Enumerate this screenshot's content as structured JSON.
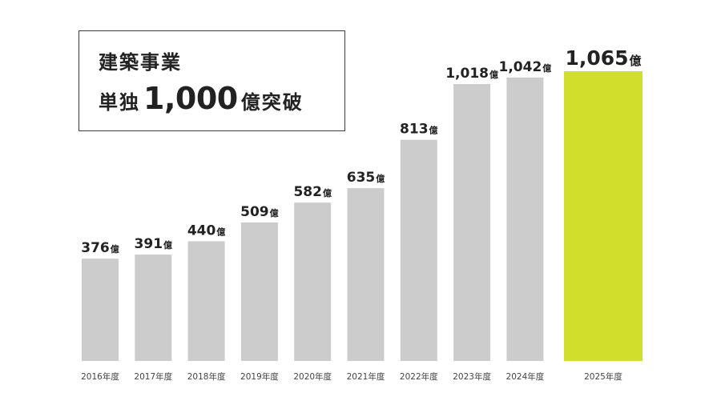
{
  "headline": {
    "line1": "建築事業",
    "line2_prefix": "単独",
    "line2_number": "1,000",
    "line2_suffix": "億突破"
  },
  "colors": {
    "bar": "#cccccc",
    "highlight": "#d1de2b",
    "text": "#222222",
    "axis": "#444444"
  },
  "chart_data": {
    "type": "bar",
    "categories": [
      "2016年度",
      "2017年度",
      "2018年度",
      "2019年度",
      "2020年度",
      "2021年度",
      "2022年度",
      "2023年度",
      "2024年度",
      "2025年度"
    ],
    "values": [
      376,
      391,
      440,
      509,
      582,
      635,
      813,
      1018,
      1042,
      1065
    ],
    "value_labels": [
      "376",
      "391",
      "440",
      "509",
      "582",
      "635",
      "813",
      "1,018",
      "1,042",
      "1,065"
    ],
    "unit": "億",
    "highlight_index": 9,
    "ylim": [
      0,
      1065
    ],
    "grid": false
  }
}
